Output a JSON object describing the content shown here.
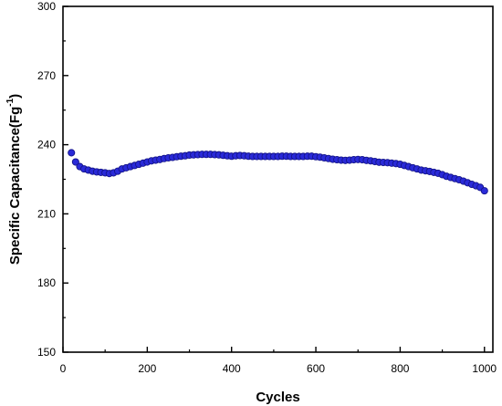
{
  "chart_data": {
    "type": "scatter",
    "title": "",
    "xlabel": "Cycles",
    "ylabel_main": "Specific Capacitance(Fg",
    "ylabel_sup": "-1",
    "ylabel_close": ")",
    "xlim": [
      0,
      1020
    ],
    "ylim": [
      150,
      300
    ],
    "xticks": [
      0,
      200,
      400,
      600,
      800,
      1000
    ],
    "yticks": [
      150,
      180,
      210,
      240,
      270,
      300
    ],
    "grid": false,
    "marker_color": "#2a2ad8",
    "marker_edge_color": "#14148a",
    "series": [
      {
        "x": [
          20,
          30,
          40,
          50,
          60,
          70,
          80,
          90,
          100,
          110,
          120,
          130,
          140,
          150,
          160,
          170,
          180,
          190,
          200,
          210,
          220,
          230,
          240,
          250,
          260,
          270,
          280,
          290,
          300,
          310,
          320,
          330,
          340,
          350,
          360,
          370,
          380,
          390,
          400,
          410,
          420,
          430,
          440,
          450,
          460,
          470,
          480,
          490,
          500,
          510,
          520,
          530,
          540,
          550,
          560,
          570,
          580,
          590,
          600,
          610,
          620,
          630,
          640,
          650,
          660,
          670,
          680,
          690,
          700,
          710,
          720,
          730,
          740,
          750,
          760,
          770,
          780,
          790,
          800,
          810,
          820,
          830,
          840,
          850,
          860,
          870,
          880,
          890,
          900,
          910,
          920,
          930,
          940,
          950,
          960,
          970,
          980,
          990,
          1000
        ],
        "y": [
          236.5,
          232.5,
          230.5,
          229.5,
          229.0,
          228.5,
          228.2,
          228.0,
          227.8,
          227.5,
          227.8,
          228.5,
          229.5,
          230.0,
          230.5,
          231.0,
          231.5,
          232.0,
          232.5,
          233.0,
          233.3,
          233.6,
          234.0,
          234.3,
          234.5,
          234.8,
          235.0,
          235.2,
          235.5,
          235.6,
          235.7,
          235.8,
          235.8,
          235.8,
          235.7,
          235.6,
          235.4,
          235.2,
          235.0,
          235.2,
          235.3,
          235.2,
          235.0,
          234.9,
          234.9,
          234.9,
          234.9,
          234.9,
          234.9,
          234.9,
          235.0,
          235.0,
          234.9,
          234.9,
          234.9,
          234.9,
          235.0,
          235.0,
          234.8,
          234.6,
          234.3,
          234.0,
          233.7,
          233.5,
          233.3,
          233.2,
          233.3,
          233.5,
          233.6,
          233.5,
          233.2,
          233.0,
          232.7,
          232.4,
          232.3,
          232.2,
          232.0,
          231.8,
          231.5,
          231.0,
          230.5,
          230.0,
          229.5,
          229.0,
          228.7,
          228.4,
          228.0,
          227.6,
          227.0,
          226.3,
          225.8,
          225.3,
          224.8,
          224.2,
          223.5,
          222.8,
          222.2,
          221.5,
          220.0
        ]
      }
    ]
  }
}
